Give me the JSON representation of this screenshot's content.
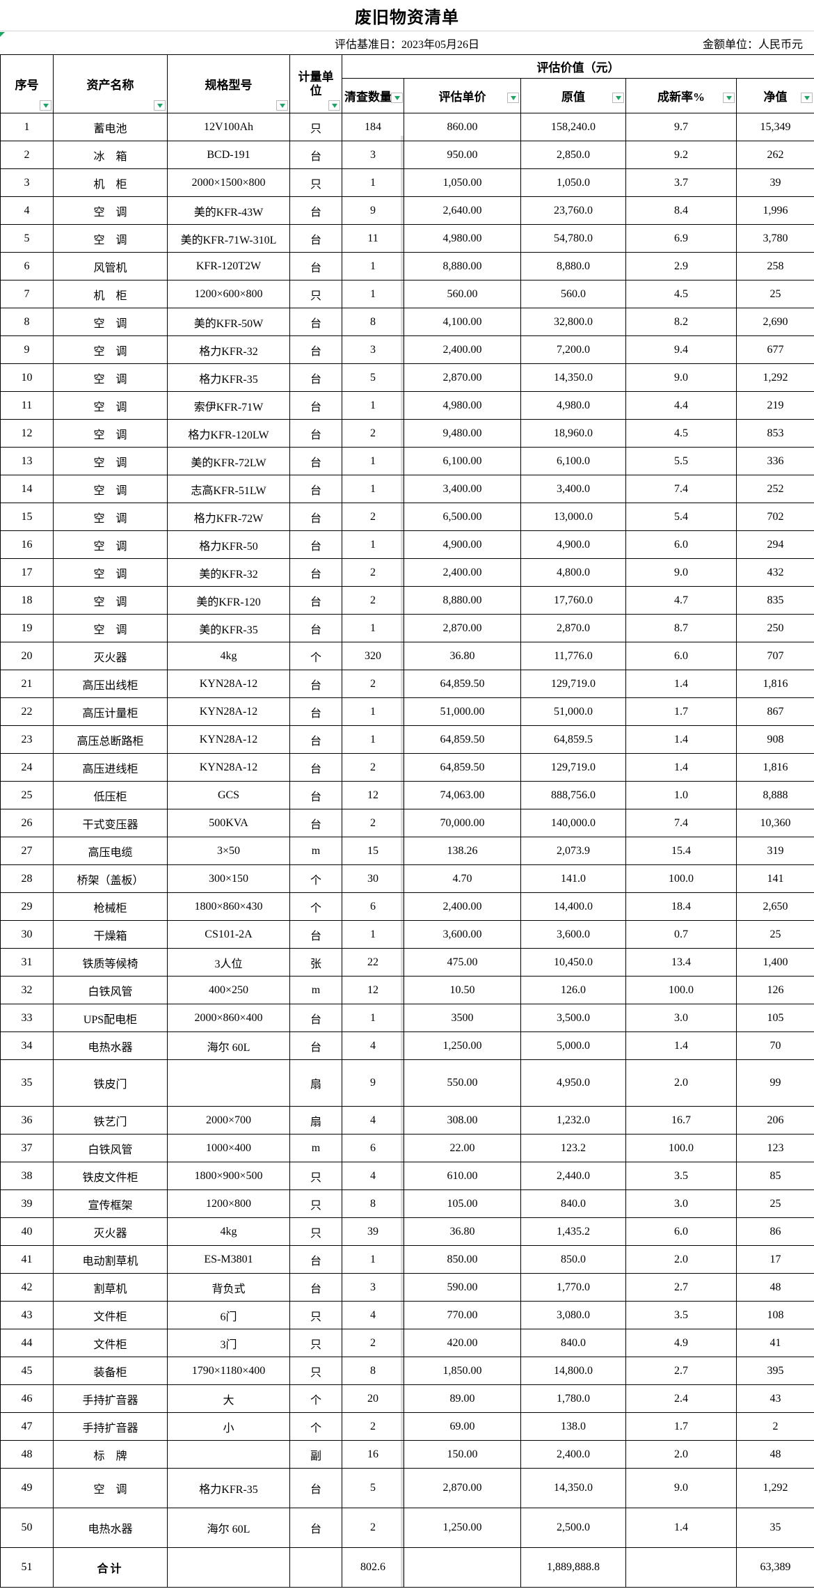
{
  "title": "废旧物资清单",
  "meta": {
    "base_date": "评估基准日：2023年05月26日",
    "unit_label": "金额单位：人民币元"
  },
  "header": {
    "seq": "序号",
    "name": "资产名称",
    "spec": "规格型号",
    "unit": "计量单位",
    "group": "评估价值（元）",
    "qty": "清查数量",
    "unit_price": "评估单价",
    "orig_value": "原值",
    "new_rate": "成新率%",
    "net_value": "净值"
  },
  "colors": {
    "filter_arrow_green": "#21a366",
    "border_black": "#000000",
    "pagebreak_gray": "#dadada"
  },
  "table": {
    "rows": [
      [
        "1",
        "蓄电池",
        "12V100Ah",
        "只",
        "184",
        "860.00",
        "158,240.0",
        "9.7",
        "15,349"
      ],
      [
        "2",
        "冰　箱",
        "BCD-191",
        "台",
        "3",
        "950.00",
        "2,850.0",
        "9.2",
        "262"
      ],
      [
        "3",
        "机　柜",
        "2000×1500×800",
        "只",
        "1",
        "1,050.00",
        "1,050.0",
        "3.7",
        "39"
      ],
      [
        "4",
        "空　调",
        "美的KFR-43W",
        "台",
        "9",
        "2,640.00",
        "23,760.0",
        "8.4",
        "1,996"
      ],
      [
        "5",
        "空　调",
        "美的KFR-71W-310L",
        "台",
        "11",
        "4,980.00",
        "54,780.0",
        "6.9",
        "3,780"
      ],
      [
        "6",
        "风管机",
        "KFR-120T2W",
        "台",
        "1",
        "8,880.00",
        "8,880.0",
        "2.9",
        "258"
      ],
      [
        "7",
        "机　柜",
        "1200×600×800",
        "只",
        "1",
        "560.00",
        "560.0",
        "4.5",
        "25"
      ],
      [
        "8",
        "空　调",
        "美的KFR-50W",
        "台",
        "8",
        "4,100.00",
        "32,800.0",
        "8.2",
        "2,690"
      ],
      [
        "9",
        "空　调",
        "格力KFR-32",
        "台",
        "3",
        "2,400.00",
        "7,200.0",
        "9.4",
        "677"
      ],
      [
        "10",
        "空　调",
        "格力KFR-35",
        "台",
        "5",
        "2,870.00",
        "14,350.0",
        "9.0",
        "1,292"
      ],
      [
        "11",
        "空　调",
        "索伊KFR-71W",
        "台",
        "1",
        "4,980.00",
        "4,980.0",
        "4.4",
        "219"
      ],
      [
        "12",
        "空　调",
        "格力KFR-120LW",
        "台",
        "2",
        "9,480.00",
        "18,960.0",
        "4.5",
        "853"
      ],
      [
        "13",
        "空　调",
        "美的KFR-72LW",
        "台",
        "1",
        "6,100.00",
        "6,100.0",
        "5.5",
        "336"
      ],
      [
        "14",
        "空　调",
        "志高KFR-51LW",
        "台",
        "1",
        "3,400.00",
        "3,400.0",
        "7.4",
        "252"
      ],
      [
        "15",
        "空　调",
        "格力KFR-72W",
        "台",
        "2",
        "6,500.00",
        "13,000.0",
        "5.4",
        "702"
      ],
      [
        "16",
        "空　调",
        "格力KFR-50",
        "台",
        "1",
        "4,900.00",
        "4,900.0",
        "6.0",
        "294"
      ],
      [
        "17",
        "空　调",
        "美的KFR-32",
        "台",
        "2",
        "2,400.00",
        "4,800.0",
        "9.0",
        "432"
      ],
      [
        "18",
        "空　调",
        "美的KFR-120",
        "台",
        "2",
        "8,880.00",
        "17,760.0",
        "4.7",
        "835"
      ],
      [
        "19",
        "空　调",
        "美的KFR-35",
        "台",
        "1",
        "2,870.00",
        "2,870.0",
        "8.7",
        "250"
      ],
      [
        "20",
        "灭火器",
        "4kg",
        "个",
        "320",
        "36.80",
        "11,776.0",
        "6.0",
        "707"
      ],
      [
        "21",
        "高压出线柜",
        "KYN28A-12",
        "台",
        "2",
        "64,859.50",
        "129,719.0",
        "1.4",
        "1,816"
      ],
      [
        "22",
        "高压计量柜",
        "KYN28A-12",
        "台",
        "1",
        "51,000.00",
        "51,000.0",
        "1.7",
        "867"
      ],
      [
        "23",
        "高压总断路柜",
        "KYN28A-12",
        "台",
        "1",
        "64,859.50",
        "64,859.5",
        "1.4",
        "908"
      ],
      [
        "24",
        "高压进线柜",
        "KYN28A-12",
        "台",
        "2",
        "64,859.50",
        "129,719.0",
        "1.4",
        "1,816"
      ],
      [
        "25",
        "低压柜",
        "GCS",
        "台",
        "12",
        "74,063.00",
        "888,756.0",
        "1.0",
        "8,888"
      ],
      [
        "26",
        "干式变压器",
        "500KVA",
        "台",
        "2",
        "70,000.00",
        "140,000.0",
        "7.4",
        "10,360"
      ],
      [
        "27",
        "高压电缆",
        "3×50",
        "m",
        "15",
        "138.26",
        "2,073.9",
        "15.4",
        "319"
      ],
      [
        "28",
        "桥架（盖板）",
        "300×150",
        "个",
        "30",
        "4.70",
        "141.0",
        "100.0",
        "141"
      ],
      [
        "29",
        "枪械柜",
        "1800×860×430",
        "个",
        "6",
        "2,400.00",
        "14,400.0",
        "18.4",
        "2,650"
      ],
      [
        "30",
        "干燥箱",
        "CS101-2A",
        "台",
        "1",
        "3,600.00",
        "3,600.0",
        "0.7",
        "25"
      ],
      [
        "31",
        "铁质等候椅",
        "3人位",
        "张",
        "22",
        "475.00",
        "10,450.0",
        "13.4",
        "1,400"
      ],
      [
        "32",
        "白铁风管",
        "400×250",
        "m",
        "12",
        "10.50",
        "126.0",
        "100.0",
        "126"
      ],
      [
        "33",
        "UPS配电柜",
        "2000×860×400",
        "台",
        "1",
        "3500",
        "3,500.0",
        "3.0",
        "105"
      ],
      [
        "34",
        "电热水器",
        "海尔 60L",
        "台",
        "4",
        "1,250.00",
        "5,000.0",
        "1.4",
        "70"
      ],
      [
        "35",
        "铁皮门",
        "",
        "扇",
        "9",
        "550.00",
        "4,950.0",
        "2.0",
        "99"
      ],
      [
        "36",
        "铁艺门",
        "2000×700",
        "扇",
        "4",
        "308.00",
        "1,232.0",
        "16.7",
        "206"
      ],
      [
        "37",
        "白铁风管",
        "1000×400",
        "m",
        "6",
        "22.00",
        "123.2",
        "100.0",
        "123"
      ],
      [
        "38",
        "铁皮文件柜",
        "1800×900×500",
        "只",
        "4",
        "610.00",
        "2,440.0",
        "3.5",
        "85"
      ],
      [
        "39",
        "宣传框架",
        "1200×800",
        "只",
        "8",
        "105.00",
        "840.0",
        "3.0",
        "25"
      ],
      [
        "40",
        "灭火器",
        "4kg",
        "只",
        "39",
        "36.80",
        "1,435.2",
        "6.0",
        "86"
      ],
      [
        "41",
        "电动割草机",
        "ES-M3801",
        "台",
        "1",
        "850.00",
        "850.0",
        "2.0",
        "17"
      ],
      [
        "42",
        "割草机",
        "背负式",
        "台",
        "3",
        "590.00",
        "1,770.0",
        "2.7",
        "48"
      ],
      [
        "43",
        "文件柜",
        "6门",
        "只",
        "4",
        "770.00",
        "3,080.0",
        "3.5",
        "108"
      ],
      [
        "44",
        "文件柜",
        "3门",
        "只",
        "2",
        "420.00",
        "840.0",
        "4.9",
        "41"
      ],
      [
        "45",
        "装备柜",
        "1790×1180×400",
        "只",
        "8",
        "1,850.00",
        "14,800.0",
        "2.7",
        "395"
      ],
      [
        "46",
        "手持扩音器",
        "大",
        "个",
        "20",
        "89.00",
        "1,780.0",
        "2.4",
        "43"
      ],
      [
        "47",
        "手持扩音器",
        "小",
        "个",
        "2",
        "69.00",
        "138.0",
        "1.7",
        "2"
      ],
      [
        "48",
        "标　牌",
        "",
        "副",
        "16",
        "150.00",
        "2,400.0",
        "2.0",
        "48"
      ],
      [
        "49",
        "空　调",
        "格力KFR-35",
        "台",
        "5",
        "2,870.00",
        "14,350.0",
        "9.0",
        "1,292"
      ],
      [
        "50",
        "电热水器",
        "海尔 60L",
        "台",
        "2",
        "1,250.00",
        "2,500.0",
        "1.4",
        "35"
      ],
      [
        "51",
        "合计",
        "",
        "",
        "802.6",
        "",
        "1,889,888.8",
        "",
        "63,389"
      ]
    ]
  }
}
